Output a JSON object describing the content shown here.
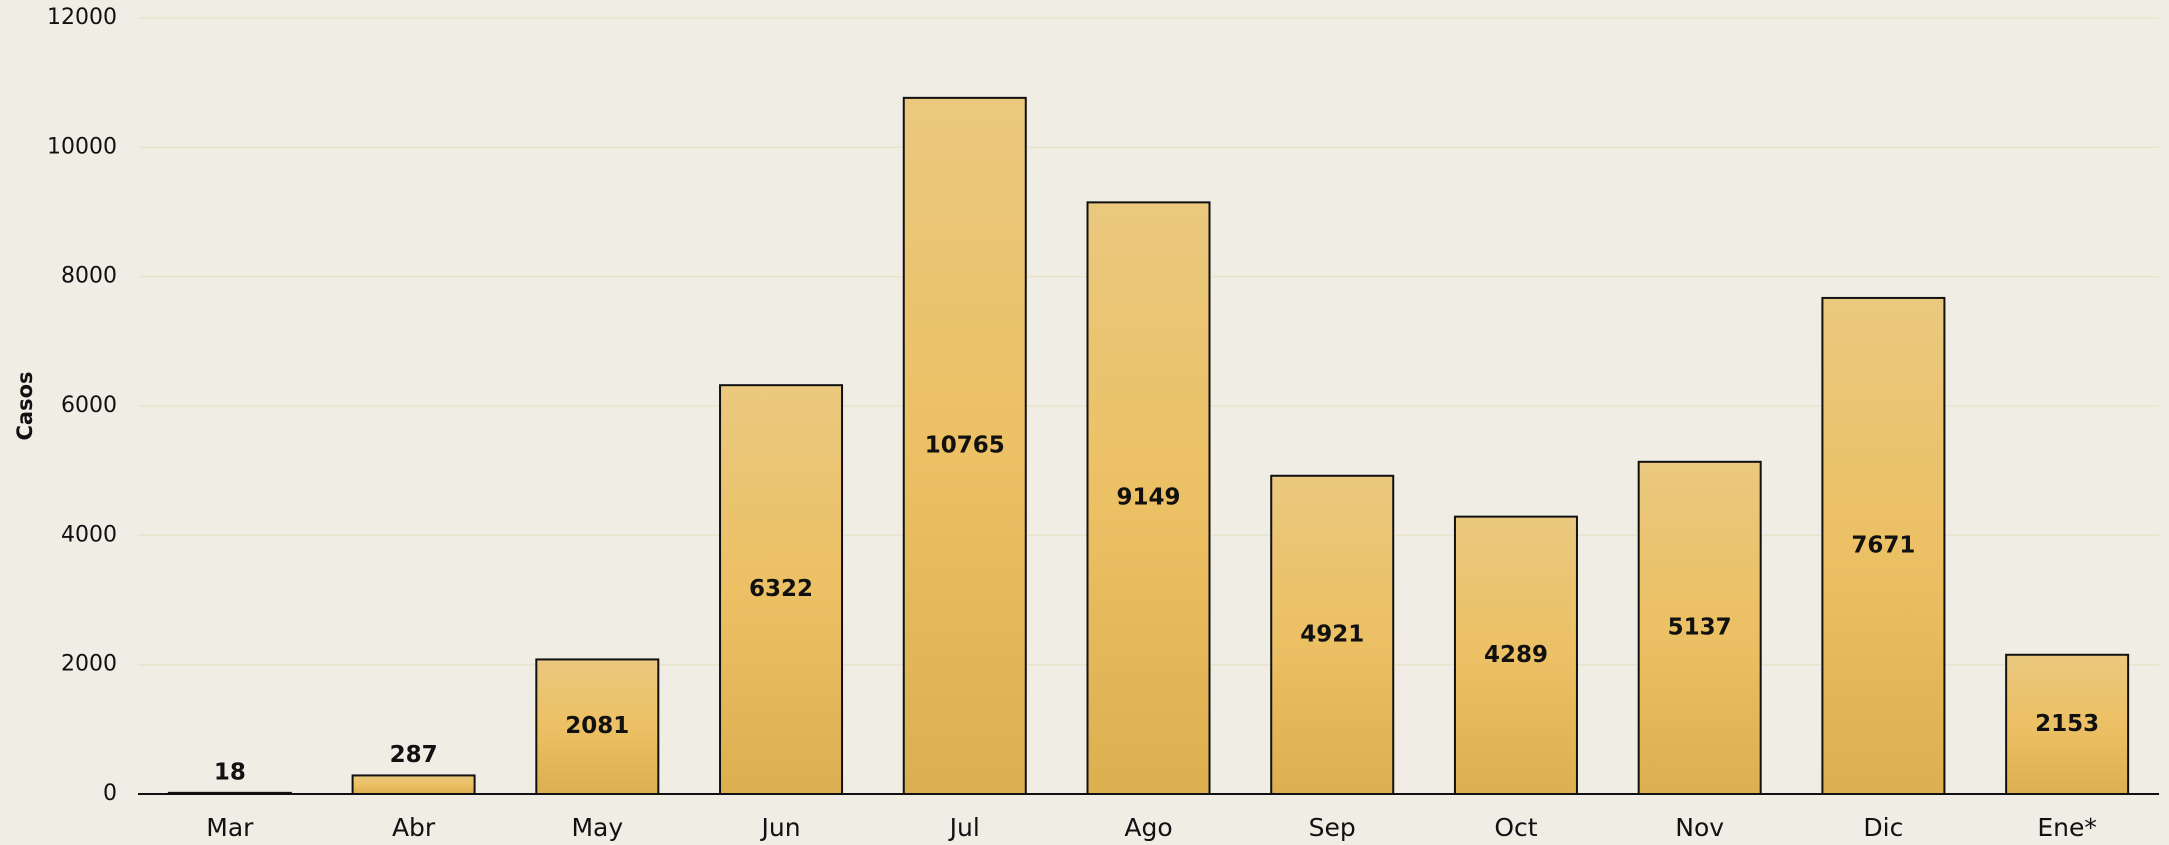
{
  "chart_data": {
    "type": "bar",
    "y_label": "Casos",
    "categories": [
      "Mar",
      "Abr",
      "May",
      "Jun",
      "Jul",
      "Ago",
      "Sep",
      "Oct",
      "Nov",
      "Dic",
      "Ene*"
    ],
    "values": [
      18,
      287,
      2081,
      6322,
      10765,
      9149,
      4921,
      4289,
      5137,
      7671,
      2153
    ],
    "color": "#ecc064",
    "ylim": [
      0,
      12000
    ],
    "yticks": [
      0,
      2000,
      4000,
      6000,
      8000,
      10000,
      12000
    ],
    "grid": true
  }
}
